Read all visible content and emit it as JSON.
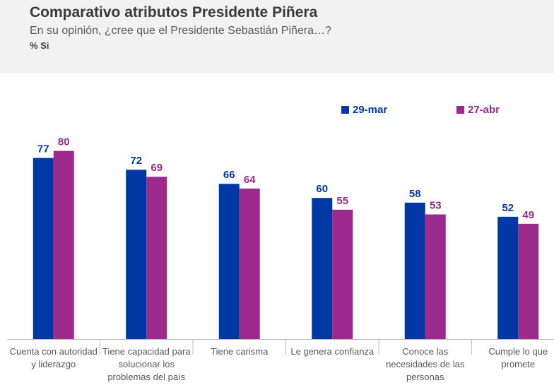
{
  "header": {
    "title": "Comparativo atributos Presidente Piñera",
    "subtitle": "En su opinión, ¿cree que el Presidente Sebastián Piñera…?",
    "unit": "% Si"
  },
  "colors": {
    "series1": "#0039a6",
    "series2": "#9b2a8c",
    "axis": "#bfbfbf",
    "tick_text": "#595959"
  },
  "chart_data": {
    "type": "bar",
    "title": "Comparativo atributos Presidente Piñera",
    "xlabel": "",
    "ylabel": "% Si",
    "ylim": [
      0,
      100
    ],
    "grid": false,
    "legend_position": "top-right",
    "categories": [
      [
        "Cuenta con autoridad",
        "y liderazgo"
      ],
      [
        "Tiene capacidad para",
        "solucionar los",
        "problemas del país"
      ],
      [
        "Tiene carisma"
      ],
      [
        "Le genera confianza"
      ],
      [
        "Conoce las",
        "necesidades de las",
        "personas"
      ],
      [
        "Cumple lo que",
        "promete"
      ]
    ],
    "series": [
      {
        "name": "29-mar",
        "values": [
          77,
          72,
          66,
          60,
          58,
          52
        ]
      },
      {
        "name": "27-abr",
        "values": [
          80,
          69,
          64,
          55,
          53,
          49
        ]
      }
    ]
  }
}
